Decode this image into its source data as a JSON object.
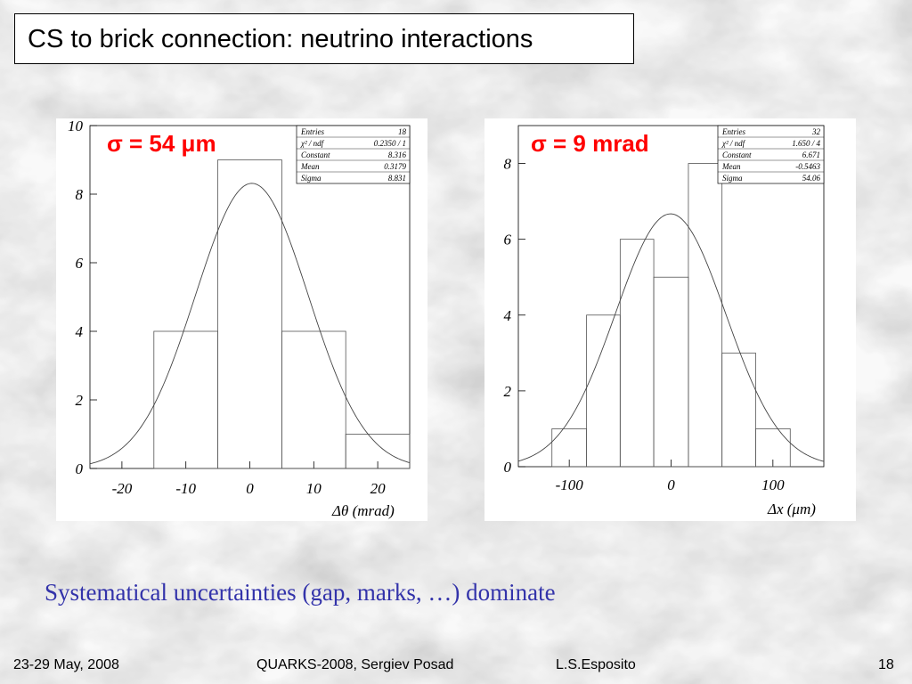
{
  "slide": {
    "title": "CS to brick connection: neutrino interactions",
    "subtitle": "Systematical uncertainties (gap, marks, …) dominate",
    "footer_date": "23-29 May, 2008",
    "footer_conference": "QUARKS-2008, Sergiev Posad",
    "footer_author": "L.S.Esposito",
    "page_number": "18"
  },
  "chart_data": [
    {
      "type": "histogram",
      "annotation": "σ = 54 μm",
      "xlabel": "Δθ (mrad)",
      "xlim": [
        -25,
        25
      ],
      "ylim": [
        0,
        10
      ],
      "xticks": [
        -20,
        -10,
        0,
        10,
        20
      ],
      "yticks": [
        0,
        2,
        4,
        6,
        8,
        10
      ],
      "bins": [
        {
          "x0": -15,
          "x1": -5,
          "value": 4
        },
        {
          "x0": -5,
          "x1": 5,
          "value": 9
        },
        {
          "x0": 5,
          "x1": 15,
          "value": 4
        },
        {
          "x0": 15,
          "x1": 25,
          "value": 1
        }
      ],
      "fit": {
        "type": "gaussian",
        "constant": 8.316,
        "mean": 0.3179,
        "sigma": 8.831
      },
      "stats": [
        {
          "label": "Entries",
          "value": "18"
        },
        {
          "label": "χ² / ndf",
          "value": "0.2350  /   1"
        },
        {
          "label": "Constant",
          "value": "8.316"
        },
        {
          "label": "Mean",
          "value": "0.3179"
        },
        {
          "label": "Sigma",
          "value": "8.831"
        }
      ]
    },
    {
      "type": "histogram",
      "annotation": "σ = 9 mrad",
      "xlabel": "Δx (μm)",
      "xlim": [
        -150,
        150
      ],
      "ylim": [
        0,
        9
      ],
      "xticks": [
        -100,
        0,
        100
      ],
      "yticks": [
        0,
        2,
        4,
        6,
        8
      ],
      "bins": [
        {
          "x0": -117,
          "x1": -83,
          "value": 1
        },
        {
          "x0": -83,
          "x1": -50,
          "value": 4
        },
        {
          "x0": -50,
          "x1": -17,
          "value": 6
        },
        {
          "x0": -17,
          "x1": 17,
          "value": 5
        },
        {
          "x0": 17,
          "x1": 50,
          "value": 8
        },
        {
          "x0": 50,
          "x1": 83,
          "value": 3
        },
        {
          "x0": 83,
          "x1": 117,
          "value": 1
        }
      ],
      "fit": {
        "type": "gaussian",
        "constant": 6.671,
        "mean": -0.5463,
        "sigma": 54.06
      },
      "stats": [
        {
          "label": "Entries",
          "value": "32"
        },
        {
          "label": "χ² / ndf",
          "value": "1.650  /   4"
        },
        {
          "label": "Constant",
          "value": "6.671"
        },
        {
          "label": "Mean",
          "value": "-0.5463"
        },
        {
          "label": "Sigma",
          "value": "54.06"
        }
      ]
    }
  ]
}
